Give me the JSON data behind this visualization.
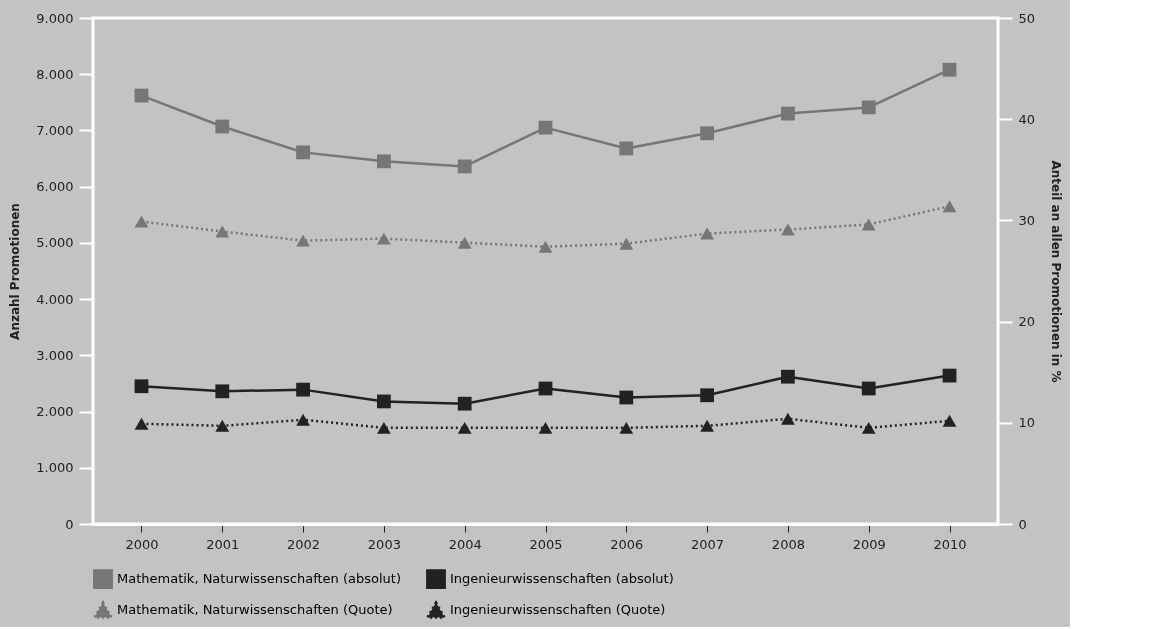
{
  "chart_data": {
    "type": "line",
    "ylabel": "Anzahl Promotionen",
    "y2label": "Anteil an allen Promotionen in %",
    "categories": [
      "2000",
      "2001",
      "2002",
      "2003",
      "2004",
      "2005",
      "2006",
      "2007",
      "2008",
      "2009",
      "2010"
    ],
    "ylim": [
      0,
      9000
    ],
    "yticks": [
      {
        "value": 0,
        "label": "0"
      },
      {
        "value": 1000,
        "label": "1.000"
      },
      {
        "value": 2000,
        "label": "2.000"
      },
      {
        "value": 3000,
        "label": "3.000"
      },
      {
        "value": 4000,
        "label": "4.000"
      },
      {
        "value": 5000,
        "label": "5.000"
      },
      {
        "value": 6000,
        "label": "6.000"
      },
      {
        "value": 7000,
        "label": "7.000"
      },
      {
        "value": 8000,
        "label": "8.000"
      },
      {
        "value": 9000,
        "label": "9.000"
      }
    ],
    "y2lim": [
      0,
      50
    ],
    "y2ticks": [
      0,
      10,
      20,
      30,
      40,
      50
    ],
    "grid": false,
    "legend": "bottom",
    "series": [
      {
        "name": "Mathematik, Naturwissenschaften (absolut)",
        "color": "#767676",
        "marker": "square",
        "line_style": "solid",
        "values": [
          7620,
          7070,
          6610,
          6450,
          6360,
          7050,
          6680,
          6950,
          7300,
          7410,
          8080
        ]
      },
      {
        "name": "Ingenieurwissenschaften (absolut)",
        "color": "#222222",
        "marker": "square",
        "line_style": "solid",
        "values": [
          2450,
          2360,
          2390,
          2180,
          2140,
          2410,
          2250,
          2290,
          2620,
          2410,
          2640
        ]
      },
      {
        "name": "Mathematik, Naturwissenschaften (Quote)",
        "color": "#767676",
        "marker": "triangle",
        "line_style": "dotted",
        "axis": "y2",
        "values": [
          29.9,
          28.9,
          28.0,
          28.2,
          27.8,
          27.4,
          27.7,
          28.7,
          29.1,
          29.6,
          31.4
        ]
      },
      {
        "name": "Ingenieurwissenschaften (Quote)",
        "color": "#222222",
        "marker": "triangle",
        "line_style": "dotted",
        "axis": "y2",
        "values": [
          9.9,
          9.7,
          10.3,
          9.5,
          9.5,
          9.5,
          9.5,
          9.7,
          10.4,
          9.5,
          10.2
        ]
      }
    ]
  }
}
